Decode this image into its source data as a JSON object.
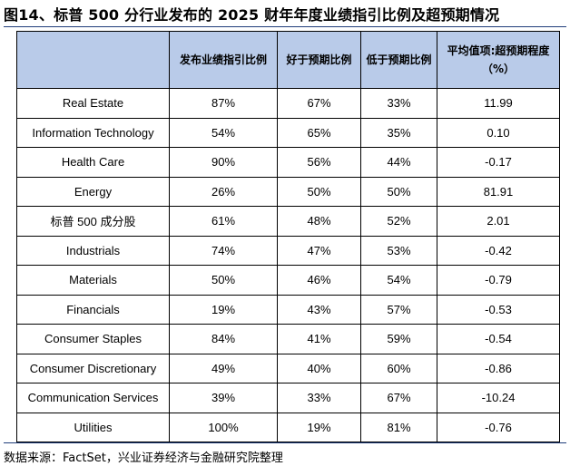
{
  "title": "图14、标普 500 分行业发布的 2025 财年年度业绩指引比例及超预期情况",
  "table": {
    "headers": [
      "",
      "发布业绩指引比例",
      "好于预期比例",
      "低于预期比例",
      "平均值项:超预期程度（%）"
    ],
    "rows": [
      [
        "Real Estate",
        "87%",
        "67%",
        "33%",
        "11.99"
      ],
      [
        "Information Technology",
        "54%",
        "65%",
        "35%",
        "0.10"
      ],
      [
        "Health Care",
        "90%",
        "56%",
        "44%",
        "-0.17"
      ],
      [
        "Energy",
        "26%",
        "50%",
        "50%",
        "81.91"
      ],
      [
        "标普 500 成分股",
        "61%",
        "48%",
        "52%",
        "2.01"
      ],
      [
        "Industrials",
        "74%",
        "47%",
        "53%",
        "-0.42"
      ],
      [
        "Materials",
        "50%",
        "46%",
        "54%",
        "-0.79"
      ],
      [
        "Financials",
        "19%",
        "43%",
        "57%",
        "-0.53"
      ],
      [
        "Consumer Staples",
        "84%",
        "41%",
        "59%",
        "-0.54"
      ],
      [
        "Consumer Discretionary",
        "49%",
        "40%",
        "60%",
        "-0.86"
      ],
      [
        "Communication Services",
        "39%",
        "33%",
        "67%",
        "-10.24"
      ],
      [
        "Utilities",
        "100%",
        "19%",
        "81%",
        "-0.76"
      ]
    ]
  },
  "source": "数据来源：FactSet，兴业证券经济与金融研究院整理",
  "colors": {
    "header_bg": "#b9cbe9",
    "rule": "#1f3d7a"
  }
}
